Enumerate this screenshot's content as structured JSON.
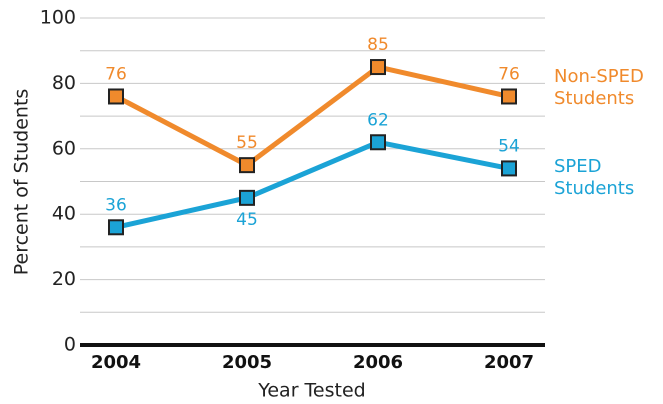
{
  "chart_data": {
    "type": "line",
    "x_label": "Year Tested",
    "y_label": "Percent of Students",
    "categories": [
      "2004",
      "2005",
      "2006",
      "2007"
    ],
    "series": [
      {
        "name": "Non-SPED Students",
        "color": "#f08a2c",
        "values": [
          76,
          55,
          85,
          76
        ]
      },
      {
        "name": "SPED Students",
        "color": "#1ba3d6",
        "values": [
          36,
          45,
          62,
          54
        ]
      }
    ],
    "ylim": [
      0,
      100
    ],
    "yticks": [
      0,
      20,
      40,
      60,
      80,
      100
    ],
    "minor_yticks": [
      10,
      30,
      50,
      70,
      90
    ],
    "grid": true,
    "legend": "right"
  }
}
